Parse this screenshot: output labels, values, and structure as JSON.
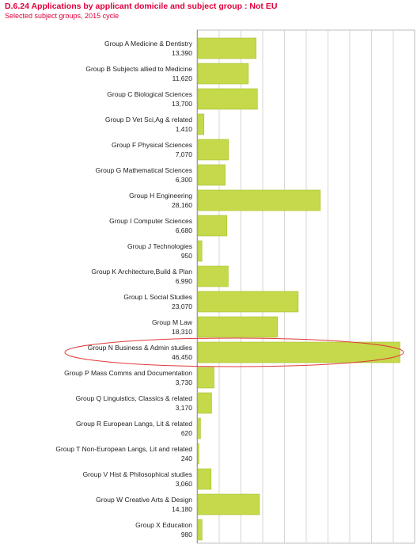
{
  "page": {
    "title": "D.6.24 Applications by applicant domicile and subject group : Not EU",
    "subtitle": "Selected subject groups, 2015 cycle"
  },
  "chart_data": {
    "type": "bar",
    "orientation": "horizontal",
    "title": "D.6.24 Applications by applicant domicile and subject group : Not EU",
    "subtitle": "Selected subject groups, 2015 cycle",
    "categories": [
      "Group A Medicine & Dentistry",
      "Group B Subjects allied to Medicine",
      "Group C Biological Sciences",
      "Group D Vet Sci,Ag & related",
      "Group F Physical Sciences",
      "Group G Mathematical Sciences",
      "Group H Engineering",
      "Group I Computer Sciences",
      "Group J Technologies",
      "Group K Architecture,Build & Plan",
      "Group L Social Studies",
      "Group M Law",
      "Group N Business & Admin studies",
      "Group P Mass Comms and Documentation",
      "Group Q Linguistics, Classics & related",
      "Group R European Langs, Lit & related",
      "Group T Non-European Langs, Lit and related",
      "Group V Hist & Philosophical studies",
      "Group W Creative Arts & Design",
      "Group X Education"
    ],
    "values": [
      13390,
      11620,
      13700,
      1410,
      7070,
      6300,
      28160,
      6680,
      950,
      6990,
      23070,
      18310,
      46450,
      3730,
      3170,
      620,
      240,
      3060,
      14180,
      980
    ],
    "value_labels": [
      "13,390",
      "11,620",
      "13,700",
      "1,410",
      "7,070",
      "6,300",
      "28,160",
      "6,680",
      "950",
      "6,990",
      "23,070",
      "18,310",
      "46,450",
      "3,730",
      "3,170",
      "620",
      "240",
      "3,060",
      "14,180",
      "980"
    ],
    "xlim": [
      0,
      50000
    ],
    "grid": true,
    "highlighted_category": "Group N Business & Admin studies",
    "bar_color": "#c5d94a",
    "bar_edge_color": "#a9bf2e",
    "highlight_color": "#e03a3a"
  }
}
